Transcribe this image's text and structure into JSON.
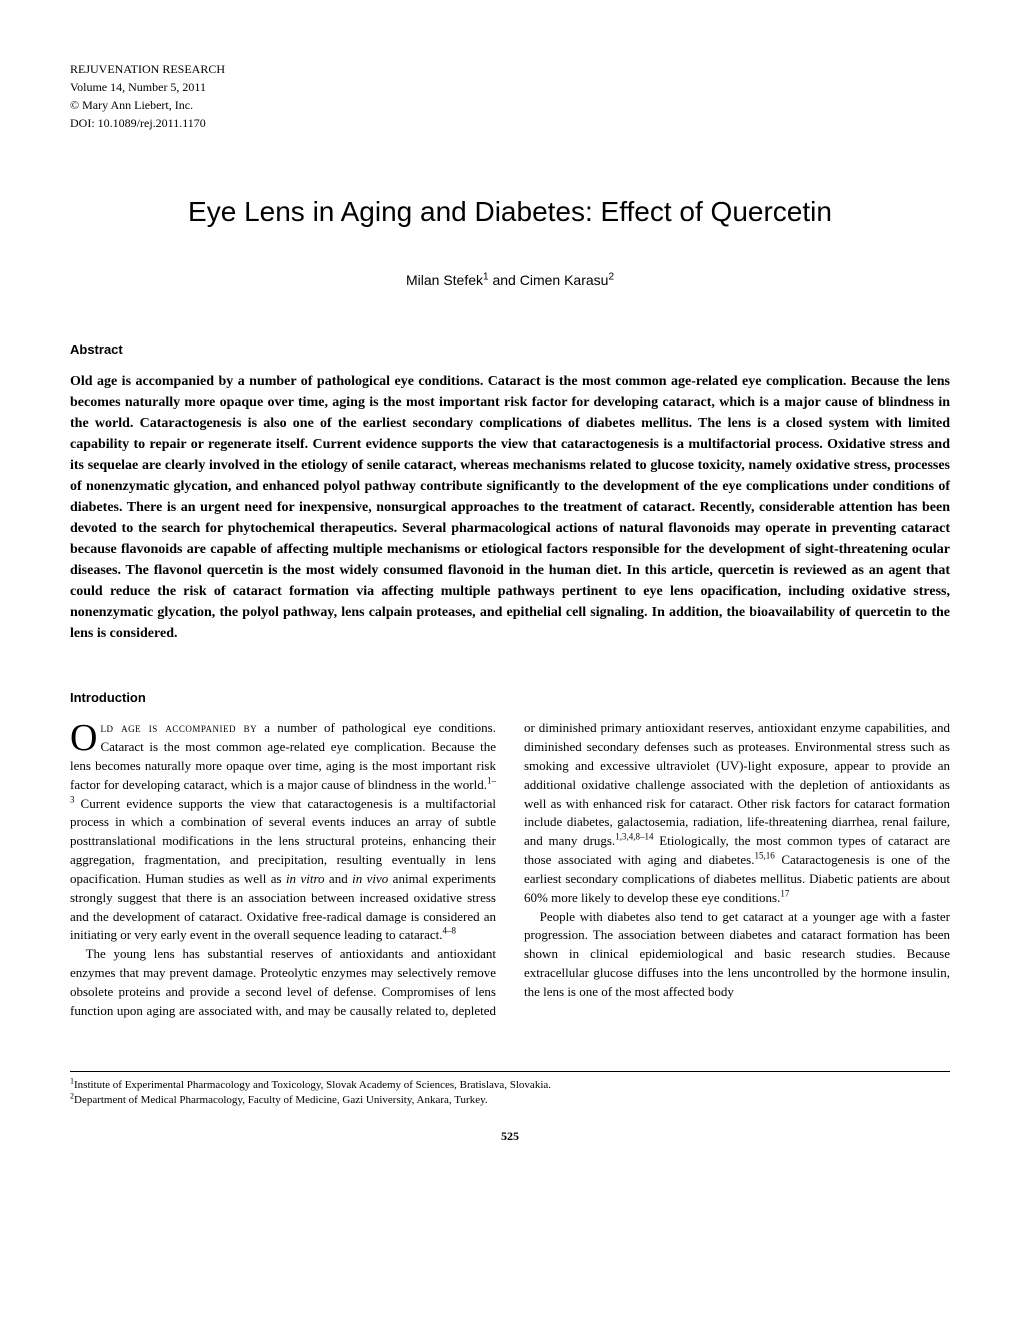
{
  "journal": {
    "name": "REJUVENATION RESEARCH",
    "volume_line": "Volume 14, Number 5, 2011",
    "copyright": "© Mary Ann Liebert, Inc.",
    "doi": "DOI: 10.1089/rej.2011.1170"
  },
  "article": {
    "title": "Eye Lens in Aging and Diabetes: Effect of Quercetin",
    "author_prefix": "Milan Stefek",
    "author_sup1": "1",
    "author_and": " and Cimen Karasu",
    "author_sup2": "2"
  },
  "abstract": {
    "heading": "Abstract",
    "body": "Old age is accompanied by a number of pathological eye conditions. Cataract is the most common age-related eye complication. Because the lens becomes naturally more opaque over time, aging is the most important risk factor for developing cataract, which is a major cause of blindness in the world. Cataractogenesis is also one of the earliest secondary complications of diabetes mellitus. The lens is a closed system with limited capability to repair or regenerate itself. Current evidence supports the view that cataractogenesis is a multifactorial process. Oxidative stress and its sequelae are clearly involved in the etiology of senile cataract, whereas mechanisms related to glucose toxicity, namely oxidative stress, processes of nonenzymatic glycation, and enhanced polyol pathway contribute significantly to the development of the eye complications under conditions of diabetes. There is an urgent need for inexpensive, nonsurgical approaches to the treatment of cataract. Recently, considerable attention has been devoted to the search for phytochemical therapeutics. Several pharmacological actions of natural flavonoids may operate in preventing cataract because flavonoids are capable of affecting multiple mechanisms or etiological factors responsible for the development of sight-threatening ocular diseases. The flavonol quercetin is the most widely consumed flavonoid in the human diet. In this article, quercetin is reviewed as an agent that could reduce the risk of cataract formation via affecting multiple pathways pertinent to eye lens opacification, including oxidative stress, nonenzymatic glycation, the polyol pathway, lens calpain proteases, and epithelial cell signaling. In addition, the bioavailability of quercetin to the lens is considered."
  },
  "intro": {
    "heading": "Introduction",
    "dropcap": "O",
    "p1_smallcaps": "ld age is accompanied by",
    "p1_rest_a": " a number of pathological eye conditions. Cataract is the most common age-related eye complication. Because the lens becomes naturally more opaque over time, aging is the most important risk factor for developing cataract, which is a major cause of blindness in the world.",
    "p1_sup1": "1–3",
    "p1_rest_b": " Current evidence supports the view that cataractogenesis is a multifactorial process in which a combination of several events induces an array of subtle posttranslational modifications in the lens structural proteins, enhancing their aggregation, fragmentation, and precipitation, resulting eventually in lens opacification. Human studies as well as ",
    "p1_italic1": "in vitro",
    "p1_mid": " and ",
    "p1_italic2": "in vivo",
    "p1_rest_c": " animal experiments strongly suggest that there is an association between increased oxidative stress and the development of cataract. Oxidative free-radical damage is considered an initiating or very early event in the overall sequence leading to cataract.",
    "p1_sup2": "4–8",
    "p2_a": "The young lens has substantial reserves of antioxidants and antioxidant enzymes that may prevent damage. Proteolytic enzymes may selectively remove obsolete proteins and provide a second level of defense. Compromises of lens function upon aging are associated with, and may be causally related to, depleted or diminished primary antioxidant reserves, antioxidant enzyme capabilities, and diminished secondary defenses such as proteases. Environmental stress such as smoking and excessive ultraviolet (UV)-light exposure, appear to provide an additional oxidative challenge associated with the depletion of antioxidants as well as with enhanced risk for cataract. Other risk factors for cataract formation include diabetes, galactosemia, radiation, life-threatening diarrhea, renal failure, and many drugs.",
    "p2_sup1": "1,3,4,8–14",
    "p2_b": " Etiologically, the most common types of cataract are those associated with aging and diabetes.",
    "p2_sup2": "15,16",
    "p2_c": " Cataractogenesis is one of the earliest secondary complications of diabetes mellitus. Diabetic patients are about 60% more likely to develop these eye conditions.",
    "p2_sup3": "17",
    "p3": "People with diabetes also tend to get cataract at a younger age with a faster progression. The association between diabetes and cataract formation has been shown in clinical epidemiological and basic research studies. Because extracellular glucose diffuses into the lens uncontrolled by the hormone insulin, the lens is one of the most affected body"
  },
  "affiliations": {
    "aff1_sup": "1",
    "aff1": "Institute of Experimental Pharmacology and Toxicology, Slovak Academy of Sciences, Bratislava, Slovakia.",
    "aff2_sup": "2",
    "aff2": "Department of Medical Pharmacology, Faculty of Medicine, Gazi University, Ankara, Turkey."
  },
  "page_number": "525"
}
